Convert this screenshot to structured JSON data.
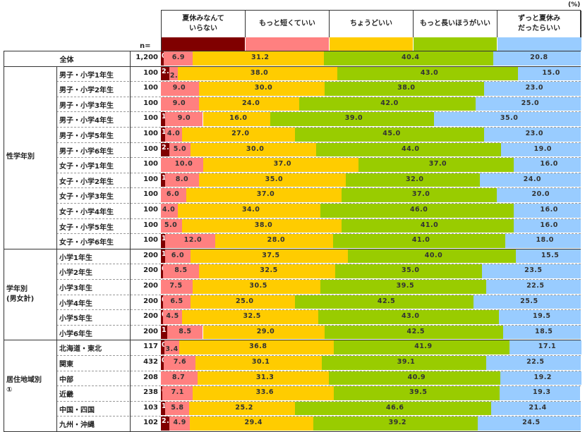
{
  "chart_data": {
    "type": "bar",
    "orientation": "horizontal",
    "stacked": true,
    "unit_label": "(%)",
    "n_header": "n=",
    "series": [
      {
        "name": "夏休みなんて\nいらない",
        "color": "#800000",
        "label_color": "#ffffff"
      },
      {
        "name": "もっと短くていい",
        "color": "#ff8080",
        "label_color": "#333333"
      },
      {
        "name": "ちょうどいい",
        "color": "#ffcc00",
        "label_color": "#333333"
      },
      {
        "name": "もっと長いほうがいい",
        "color": "#99cc00",
        "label_color": "#333333"
      },
      {
        "name": "ずっと夏休み\nだったらいい",
        "color": "#99ccff",
        "label_color": "#333333"
      }
    ],
    "groups": [
      {
        "category": "",
        "rows": [
          {
            "label": "全体",
            "n": "1,200",
            "values": [
              0.7,
              6.9,
              31.2,
              40.4,
              20.8
            ]
          }
        ]
      },
      {
        "category": "性学年別",
        "rows": [
          {
            "label": "男子・小学1年生",
            "n": "100",
            "values": [
              2.0,
              2.0,
              38.0,
              43.0,
              15.0
            ]
          },
          {
            "label": "男子・小学2年生",
            "n": "100",
            "values": [
              0.0,
              9.0,
              30.0,
              38.0,
              23.0
            ]
          },
          {
            "label": "男子・小学3年生",
            "n": "100",
            "values": [
              0.0,
              9.0,
              24.0,
              42.0,
              25.0
            ]
          },
          {
            "label": "男子・小学4年生",
            "n": "100",
            "values": [
              1.0,
              9.0,
              16.0,
              39.0,
              35.0
            ]
          },
          {
            "label": "男子・小学5年生",
            "n": "100",
            "values": [
              1.0,
              4.0,
              27.0,
              45.0,
              23.0
            ]
          },
          {
            "label": "男子・小学6年生",
            "n": "100",
            "values": [
              2.0,
              5.0,
              30.0,
              44.0,
              19.0
            ]
          },
          {
            "label": "女子・小学1年生",
            "n": "100",
            "values": [
              0.0,
              10.0,
              37.0,
              37.0,
              16.0
            ]
          },
          {
            "label": "女子・小学2年生",
            "n": "100",
            "values": [
              1.0,
              8.0,
              35.0,
              32.0,
              24.0
            ]
          },
          {
            "label": "女子・小学3年生",
            "n": "100",
            "values": [
              0.0,
              6.0,
              37.0,
              37.0,
              20.0
            ]
          },
          {
            "label": "女子・小学4年生",
            "n": "100",
            "values": [
              0.0,
              4.0,
              34.0,
              46.0,
              16.0
            ]
          },
          {
            "label": "女子・小学5年生",
            "n": "100",
            "values": [
              0.0,
              5.0,
              38.0,
              41.0,
              16.0
            ]
          },
          {
            "label": "女子・小学6年生",
            "n": "100",
            "values": [
              1.0,
              12.0,
              28.0,
              41.0,
              18.0
            ]
          }
        ]
      },
      {
        "category": "学年別\n(男女計)",
        "rows": [
          {
            "label": "小学1年生",
            "n": "200",
            "values": [
              1.0,
              6.0,
              37.5,
              40.0,
              15.5
            ]
          },
          {
            "label": "小学2年生",
            "n": "200",
            "values": [
              0.5,
              8.5,
              32.5,
              35.0,
              23.5
            ]
          },
          {
            "label": "小学3年生",
            "n": "200",
            "values": [
              0.0,
              7.5,
              30.5,
              39.5,
              22.5
            ]
          },
          {
            "label": "小学4年生",
            "n": "200",
            "values": [
              0.5,
              6.5,
              25.0,
              42.5,
              25.5
            ]
          },
          {
            "label": "小学5年生",
            "n": "200",
            "values": [
              0.5,
              4.5,
              32.5,
              43.0,
              19.5
            ]
          },
          {
            "label": "小学6年生",
            "n": "200",
            "values": [
              1.5,
              8.5,
              29.0,
              42.5,
              18.5
            ]
          }
        ]
      },
      {
        "category": "居住地域別\n①",
        "rows": [
          {
            "label": "北海道・東北",
            "n": "117",
            "values": [
              0.9,
              3.4,
              36.8,
              41.9,
              17.1
            ]
          },
          {
            "label": "関東",
            "n": "432",
            "values": [
              0.7,
              7.6,
              30.1,
              39.1,
              22.5
            ]
          },
          {
            "label": "中部",
            "n": "208",
            "values": [
              0.0,
              8.7,
              31.3,
              40.9,
              19.2
            ]
          },
          {
            "label": "近畿",
            "n": "238",
            "values": [
              0.4,
              7.1,
              33.6,
              39.5,
              19.3
            ]
          },
          {
            "label": "中国・四国",
            "n": "103",
            "values": [
              1.0,
              5.8,
              25.2,
              46.6,
              21.4
            ]
          },
          {
            "label": "九州・沖縄",
            "n": "102",
            "values": [
              2.0,
              4.9,
              29.4,
              39.2,
              24.5
            ]
          }
        ]
      }
    ],
    "xlim": [
      0,
      100
    ],
    "grid": false,
    "legend_position": "top"
  }
}
